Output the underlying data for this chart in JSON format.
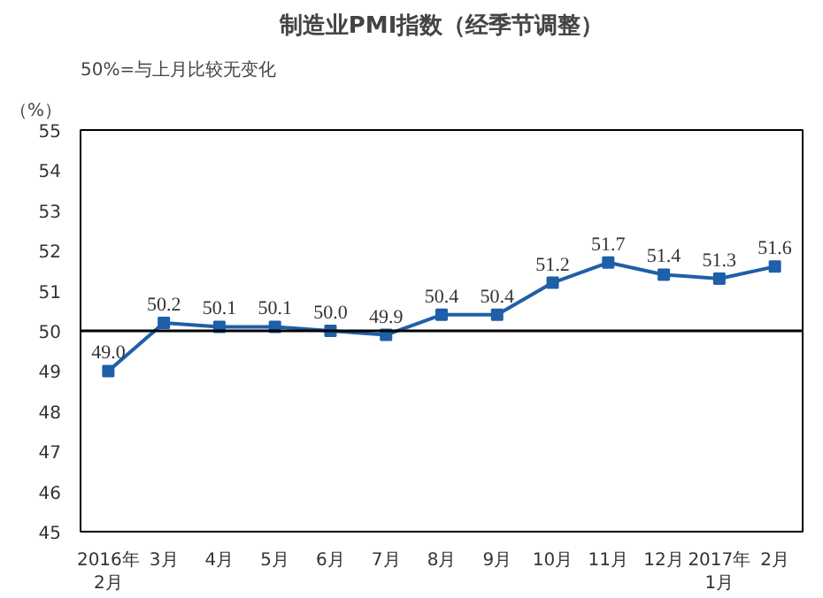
{
  "chart_data": {
    "type": "line",
    "title": "制造业PMI指数（经季节调整）",
    "ylabel": "（%）",
    "annotations": [
      "50%=与上月比较无变化"
    ],
    "categories": [
      "2016年\n2月",
      "3月",
      "4月",
      "5月",
      "6月",
      "7月",
      "8月",
      "9月",
      "10月",
      "11月",
      "12月",
      "2017年\n1月",
      "2月"
    ],
    "series": [
      {
        "color": "#1f5fa8",
        "values": [
          49.0,
          50.2,
          50.1,
          50.1,
          50.0,
          49.9,
          50.4,
          50.4,
          51.2,
          51.7,
          51.4,
          51.3,
          51.6
        ],
        "value_labels": [
          "49.0",
          "50.2",
          "50.1",
          "50.1",
          "50.0",
          "49.9",
          "50.4",
          "50.4",
          "51.2",
          "51.7",
          "51.4",
          "51.3",
          "51.6"
        ]
      }
    ],
    "ylim": [
      45,
      55
    ],
    "yticks": [
      45,
      46,
      47,
      48,
      49,
      50,
      51,
      52,
      53,
      54,
      55
    ],
    "ref_lines": [
      {
        "axis": "y",
        "value": 50,
        "color": "#000000"
      }
    ],
    "marker": "square",
    "line_style": "solid",
    "grid": false
  }
}
